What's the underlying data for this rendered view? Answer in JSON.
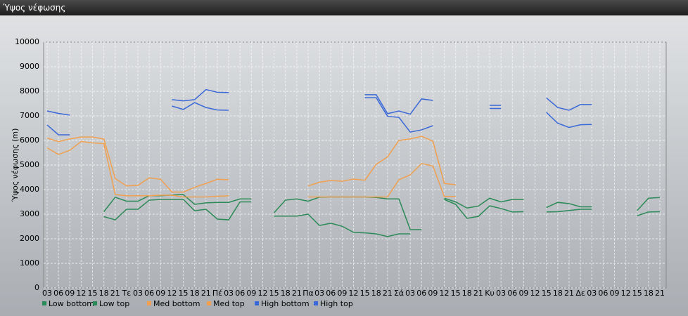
{
  "window": {
    "title": "Ύψος νέφωσης"
  },
  "chart_data": {
    "type": "line",
    "ylabel": "Ύψος νέφωσης (m)",
    "categories": [
      "03",
      "06",
      "09",
      "12",
      "15",
      "18",
      "21",
      "Τε",
      "03",
      "06",
      "09",
      "12",
      "15",
      "18",
      "21",
      "Πέ",
      "03",
      "06",
      "09",
      "12",
      "15",
      "18",
      "21",
      "Πα",
      "03",
      "06",
      "09",
      "12",
      "15",
      "18",
      "21",
      "Σά",
      "03",
      "06",
      "09",
      "12",
      "15",
      "18",
      "21",
      "Κυ",
      "03",
      "06",
      "09",
      "12",
      "15",
      "18",
      "21",
      "Δε",
      "03",
      "06",
      "09",
      "12",
      "15",
      "18",
      "21"
    ],
    "ylim": [
      0,
      10000
    ],
    "yticks": [
      0,
      1000,
      2000,
      3000,
      4000,
      5000,
      6000,
      7000,
      8000,
      9000,
      10000
    ],
    "grid": true,
    "series": [
      {
        "name": "Low bottom",
        "color": "#2b8a57",
        "values": [
          null,
          null,
          null,
          null,
          null,
          2900,
          2770,
          3200,
          3200,
          3570,
          3600,
          3600,
          3600,
          3140,
          3200,
          2800,
          2770,
          3500,
          3500,
          null,
          2920,
          2920,
          2920,
          3000,
          2540,
          2630,
          2510,
          2260,
          2240,
          2200,
          2090,
          2200,
          2200,
          null,
          null,
          3600,
          3400,
          2830,
          2910,
          3340,
          3230,
          3090,
          3100,
          null,
          3090,
          3100,
          3150,
          3200,
          3200,
          null,
          null,
          null,
          2940,
          3090,
          3100
        ]
      },
      {
        "name": "Low top",
        "color": "#2b8a57",
        "values": [
          null,
          null,
          null,
          null,
          null,
          3100,
          3690,
          3530,
          3530,
          3750,
          3750,
          3780,
          3800,
          3400,
          3460,
          3480,
          3480,
          3620,
          3620,
          null,
          3060,
          3570,
          3620,
          3530,
          3690,
          3700,
          3700,
          3700,
          3700,
          3680,
          3620,
          3620,
          2370,
          2370,
          null,
          3650,
          3500,
          3250,
          3330,
          3650,
          3500,
          3600,
          3600,
          null,
          3270,
          3480,
          3430,
          3300,
          3300,
          null,
          null,
          null,
          3150,
          3650,
          3680
        ]
      },
      {
        "name": "Med bottom",
        "color": "#f0a050",
        "values": [
          5700,
          5430,
          5600,
          5960,
          5900,
          5870,
          3800,
          3750,
          3750,
          3750,
          3770,
          3770,
          3700,
          3700,
          3700,
          3730,
          3750,
          null,
          null,
          null,
          null,
          null,
          null,
          3700,
          3700,
          3700,
          3700,
          3700,
          3700,
          3700,
          3700,
          4400,
          4600,
          5060,
          4960,
          3720,
          3720,
          null,
          null,
          null,
          null,
          null,
          null,
          null,
          null,
          null,
          null,
          null,
          null,
          null,
          null,
          null,
          null,
          null,
          null
        ]
      },
      {
        "name": "Med top",
        "color": "#f0a050",
        "values": [
          6100,
          5950,
          6060,
          6140,
          6140,
          6060,
          4450,
          4150,
          4170,
          4480,
          4420,
          3900,
          3900,
          4090,
          4250,
          4420,
          4400,
          null,
          null,
          null,
          null,
          null,
          null,
          4150,
          4300,
          4370,
          4340,
          4430,
          4380,
          5030,
          5330,
          6000,
          6060,
          6170,
          5970,
          4250,
          4200,
          null,
          null,
          null,
          null,
          null,
          null,
          null,
          null,
          null,
          null,
          null,
          null,
          null,
          null,
          null,
          null,
          null,
          null
        ]
      },
      {
        "name": "High bottom",
        "color": "#3a68d8",
        "values": [
          6630,
          6230,
          6230,
          null,
          null,
          null,
          null,
          null,
          null,
          null,
          null,
          7400,
          7260,
          7540,
          7340,
          7240,
          7230,
          null,
          null,
          null,
          null,
          null,
          null,
          null,
          null,
          null,
          null,
          null,
          7740,
          7740,
          6980,
          6940,
          6340,
          6430,
          6600,
          null,
          null,
          null,
          null,
          7300,
          7300,
          null,
          null,
          null,
          7140,
          6700,
          6530,
          6640,
          6650,
          null,
          null,
          null,
          null,
          null,
          null
        ]
      },
      {
        "name": "High top",
        "color": "#3a68d8",
        "values": [
          7200,
          7100,
          7030,
          null,
          null,
          null,
          null,
          null,
          null,
          null,
          null,
          7660,
          7610,
          7660,
          8070,
          7960,
          7950,
          null,
          null,
          null,
          null,
          null,
          null,
          null,
          null,
          null,
          null,
          null,
          7860,
          7860,
          7090,
          7200,
          7070,
          7690,
          7630,
          null,
          null,
          null,
          null,
          7430,
          7430,
          null,
          null,
          null,
          7730,
          7340,
          7230,
          7460,
          7460,
          null,
          null,
          null,
          null,
          null,
          null
        ]
      }
    ]
  }
}
